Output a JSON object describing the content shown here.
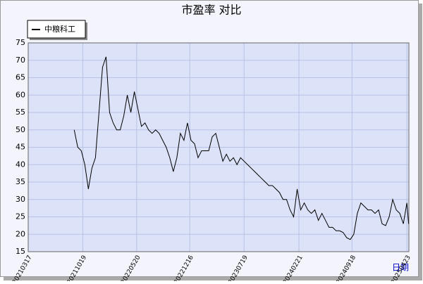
{
  "chart_data": {
    "type": "line",
    "title": "市盈率  对比",
    "x_label": "日期",
    "x": [
      "2021-09-15",
      "2021-09-29",
      "2021-10-13",
      "2021-10-27",
      "2021-11-10",
      "2021-11-24",
      "2021-12-08",
      "2021-12-22",
      "2022-01-05",
      "2022-01-19",
      "2022-02-02",
      "2022-02-16",
      "2022-03-02",
      "2022-03-16",
      "2022-03-30",
      "2022-04-13",
      "2022-04-27",
      "2022-05-11",
      "2022-05-25",
      "2022-06-08",
      "2022-06-22",
      "2022-07-06",
      "2022-07-20",
      "2022-08-03",
      "2022-08-17",
      "2022-08-31",
      "2022-09-14",
      "2022-09-28",
      "2022-10-12",
      "2022-10-26",
      "2022-11-09",
      "2022-11-23",
      "2022-12-07",
      "2022-12-21",
      "2023-01-04",
      "2023-01-18",
      "2023-02-01",
      "2023-02-15",
      "2023-03-01",
      "2023-03-15",
      "2023-03-29",
      "2023-04-12",
      "2023-04-26",
      "2023-05-10",
      "2023-05-24",
      "2023-06-07",
      "2023-06-21",
      "2023-07-05",
      "2023-07-19",
      "2023-08-02",
      "2023-08-16",
      "2023-08-30",
      "2023-09-13",
      "2023-09-27",
      "2023-10-11",
      "2023-10-25",
      "2023-11-08",
      "2023-11-22",
      "2023-12-06",
      "2023-12-20",
      "2024-01-03",
      "2024-01-17",
      "2024-01-31",
      "2024-02-14",
      "2024-02-28",
      "2024-03-13",
      "2024-03-27",
      "2024-04-10",
      "2024-04-24",
      "2024-05-08",
      "2024-05-22",
      "2024-06-05",
      "2024-06-19",
      "2024-07-03",
      "2024-07-17",
      "2024-07-31",
      "2024-08-14",
      "2024-08-28",
      "2024-09-11",
      "2024-09-25",
      "2024-10-09",
      "2024-10-23",
      "2024-11-06",
      "2024-11-20",
      "2024-12-04",
      "2024-12-18",
      "2025-01-01",
      "2025-01-15",
      "2025-01-29",
      "2025-02-12",
      "2025-02-26",
      "2025-03-12",
      "2025-03-26",
      "2025-04-09",
      "2025-04-23",
      "2025-04-30"
    ],
    "series": [
      {
        "name": "中粮科工",
        "color": "#000000",
        "values": [
          50,
          45,
          44,
          40,
          33,
          39,
          42,
          55,
          68,
          71,
          55,
          52,
          50,
          50,
          54,
          60,
          55,
          61,
          56,
          51,
          52,
          50,
          49,
          50,
          49,
          47,
          45,
          42,
          38,
          42,
          49,
          47,
          52,
          47,
          46,
          42,
          44,
          44,
          44,
          48,
          49,
          45,
          41,
          43,
          41,
          42,
          40,
          42,
          41,
          40,
          39,
          38,
          37,
          36,
          35,
          34,
          34,
          33,
          32,
          30,
          30,
          27,
          25,
          33,
          27,
          29,
          27,
          26,
          27,
          24,
          26,
          24,
          22,
          22,
          21,
          21,
          20.5,
          19,
          18.5,
          20,
          26,
          29,
          28,
          27,
          27,
          26,
          27,
          23,
          22.5,
          25,
          30,
          27,
          26,
          23,
          29,
          23
        ]
      }
    ],
    "xlim": [
      "2021-03-17",
      "2025-05-01"
    ],
    "xticks": [
      {
        "value": "2021-03-17",
        "label": "20210317"
      },
      {
        "value": "2021-10-19",
        "label": "20211019"
      },
      {
        "value": "2022-05-20",
        "label": "20220520"
      },
      {
        "value": "2022-12-16",
        "label": "20221216"
      },
      {
        "value": "2023-07-19",
        "label": "20230719"
      },
      {
        "value": "2024-02-21",
        "label": "20240221"
      },
      {
        "value": "2024-09-18",
        "label": "20240918"
      },
      {
        "value": "2025-04-23",
        "label": "20250423"
      }
    ],
    "ylim": [
      15,
      75
    ],
    "yticks": [
      15,
      20,
      25,
      30,
      35,
      40,
      45,
      50,
      55,
      60,
      65,
      70,
      75
    ],
    "grid": true
  }
}
